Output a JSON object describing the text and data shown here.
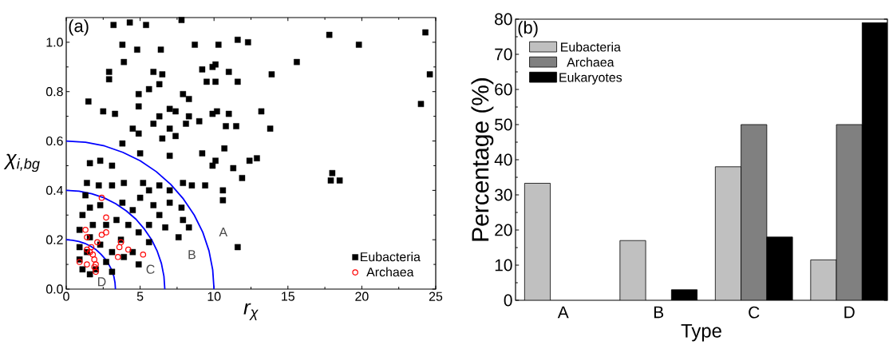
{
  "chart_data": [
    {
      "type": "scatter",
      "xlabel": "r$_{χ}$",
      "ylabel": "χ$_{i,bg}$",
      "xlim": [
        0,
        25
      ],
      "ylim": [
        0,
        1.1
      ],
      "xticks": [
        0,
        5,
        10,
        15,
        20,
        25
      ],
      "yticks": [
        {
          "value": 0,
          "label": "0.0"
        },
        {
          "value": 0.2,
          "label": "0.2"
        },
        {
          "value": 0.4,
          "label": "0.4"
        },
        {
          "value": 0.6,
          "label": "0.6"
        },
        {
          "value": 0.8,
          "label": "0.8"
        },
        {
          "value": 1.0,
          "label": "1.0"
        }
      ],
      "legend": "bottom right",
      "annotations": [
        "(a)",
        "A",
        "B",
        "C",
        "D"
      ],
      "series": [
        {
          "name": "Eubacteria",
          "color": "#000000",
          "marker": "square",
          "x": [
            3.2,
            4.3,
            5.4,
            7.8,
            3.8,
            4.8,
            6.4,
            8.7,
            3.9,
            2.9,
            2.9,
            5.9,
            6.5,
            9.2,
            9.9,
            9.5,
            1.5,
            4.9,
            5.6,
            6.3,
            7.9,
            8.3,
            2.5,
            3.3,
            4.9,
            7.0,
            7.4,
            8.3,
            9.9,
            6.3,
            4.5,
            4.9,
            5.9,
            7.0,
            8.1,
            9.0,
            6.5,
            7.4,
            3.8,
            1.6,
            2.3,
            3.1,
            5.0,
            7.0,
            9.2,
            9.9,
            1.4,
            2.2,
            3.1,
            3.9,
            5.2,
            5.6,
            6.3,
            7.0,
            7.9,
            8.5,
            9.4,
            1.3,
            1.6,
            1.1,
            2.3,
            3.8,
            4.5,
            5.0,
            5.9,
            6.3,
            7.0,
            7.8,
            7.9,
            8.3,
            7.6,
            6.7,
            5.6,
            4.9,
            4.2,
            3.4,
            2.7,
            1.8,
            0.9,
            0.9,
            1.4,
            0.9,
            1.1,
            2.0,
            2.7,
            3.1,
            3.9,
            4.9,
            4.5,
            5.6,
            3.7,
            2.3,
            1.6,
            3.1,
            1.6,
            10.3,
            11.6,
            12.3,
            17.8,
            19.8,
            24.3,
            15.6,
            13.9,
            11.0,
            11.6,
            10.1,
            10.1,
            24.6,
            24.0,
            13.2,
            13.8,
            11.0,
            10.8,
            11.5,
            10.2,
            10.7,
            12.4,
            12.9,
            10.1,
            11.3,
            11.9,
            18.0,
            17.9,
            18.5,
            10.6,
            10.6,
            11.6
          ],
          "values": [
            1.07,
            1.08,
            1.07,
            1.09,
            0.99,
            0.97,
            0.97,
            0.99,
            0.92,
            0.88,
            0.85,
            0.88,
            0.87,
            0.89,
            0.9,
            0.84,
            0.76,
            0.79,
            0.81,
            0.83,
            0.79,
            0.77,
            0.72,
            0.71,
            0.74,
            0.73,
            0.72,
            0.7,
            0.71,
            0.7,
            0.65,
            0.63,
            0.67,
            0.65,
            0.67,
            0.68,
            0.61,
            0.62,
            0.59,
            0.51,
            0.52,
            0.5,
            0.55,
            0.54,
            0.55,
            0.5,
            0.43,
            0.42,
            0.42,
            0.43,
            0.43,
            0.4,
            0.42,
            0.4,
            0.43,
            0.42,
            0.42,
            0.38,
            0.33,
            0.3,
            0.34,
            0.35,
            0.32,
            0.37,
            0.34,
            0.3,
            0.35,
            0.33,
            0.28,
            0.25,
            0.21,
            0.25,
            0.26,
            0.23,
            0.26,
            0.28,
            0.26,
            0.26,
            0.24,
            0.17,
            0.15,
            0.12,
            0.08,
            0.08,
            0.11,
            0.15,
            0.13,
            0.1,
            0.15,
            0.19,
            0.2,
            0.18,
            0.06,
            0.07,
            0.21,
            0.99,
            1.01,
            1.0,
            1.03,
            0.99,
            1.04,
            0.92,
            0.87,
            0.88,
            0.84,
            0.91,
            0.84,
            0.87,
            0.75,
            0.72,
            0.65,
            0.71,
            0.66,
            0.66,
            0.72,
            0.57,
            0.52,
            0.53,
            0.52,
            0.49,
            0.45,
            0.47,
            0.44,
            0.44,
            0.4,
            0.36,
            0.17
          ]
        },
        {
          "name": "Archaea",
          "color": "#ff0000",
          "marker": "circle",
          "x": [
            2.4,
            2.7,
            1.3,
            1.4,
            2.7,
            2.4,
            2.1,
            0.9,
            1.4,
            1.6,
            1.8,
            1.9,
            2.0,
            2.0,
            1.4,
            3.7,
            3.6,
            4.2,
            3.5,
            5.2,
            1.9,
            1.7
          ],
          "values": [
            0.37,
            0.29,
            0.24,
            0.21,
            0.23,
            0.22,
            0.19,
            0.11,
            0.1,
            0.15,
            0.14,
            0.12,
            0.1,
            0.07,
            0.16,
            0.19,
            0.17,
            0.16,
            0.13,
            0.14,
            0.09,
            0.17
          ]
        },
        {
          "type": "line",
          "color": "#0000ff",
          "marker": "none",
          "x": [
            3.33,
            3.3,
            3.22,
            3.08,
            2.88,
            2.64,
            2.35,
            2.03,
            1.67,
            1.27,
            0.86,
            0.43,
            0
          ],
          "values": [
            0,
            0.026,
            0.052,
            0.077,
            0.1,
            0.122,
            0.141,
            0.159,
            0.173,
            0.185,
            0.193,
            0.198,
            0.2
          ]
        },
        {
          "type": "line",
          "color": "#0000ff",
          "marker": "none",
          "x": [
            6.67,
            6.61,
            6.44,
            6.16,
            5.78,
            5.29,
            4.72,
            4.06,
            3.34,
            2.55,
            1.73,
            0.87,
            0
          ],
          "values": [
            0,
            0.052,
            0.104,
            0.153,
            0.2,
            0.243,
            0.283,
            0.317,
            0.346,
            0.37,
            0.386,
            0.397,
            0.4
          ]
        },
        {
          "type": "line",
          "color": "#0000ff",
          "marker": "none",
          "x": [
            10,
            9.91,
            9.66,
            9.24,
            8.66,
            7.93,
            7.07,
            6.09,
            5,
            3.83,
            2.59,
            1.31,
            0
          ],
          "values": [
            0,
            0.078,
            0.155,
            0.23,
            0.3,
            0.365,
            0.424,
            0.476,
            0.52,
            0.554,
            0.58,
            0.595,
            0.6
          ]
        }
      ]
    },
    {
      "type": "bar",
      "xlabel": "Type",
      "ylabel": "Percentage (%)",
      "categories": [
        "A",
        "B",
        "C",
        "D"
      ],
      "ylim": [
        0,
        80
      ],
      "yticks": [
        0,
        10,
        20,
        30,
        40,
        50,
        60,
        70,
        80
      ],
      "legend": "top left",
      "annotations": [
        "(b)"
      ],
      "series": [
        {
          "name": "Eubacteria",
          "color": "#c0c0c0",
          "values": [
            33.3,
            17,
            38,
            11.5
          ]
        },
        {
          "name": "Archaea",
          "color": "#808080",
          "values": [
            null,
            null,
            50,
            50
          ]
        },
        {
          "name": "Eukaryotes",
          "color": "#000000",
          "values": [
            null,
            3,
            18,
            79
          ]
        }
      ]
    }
  ]
}
